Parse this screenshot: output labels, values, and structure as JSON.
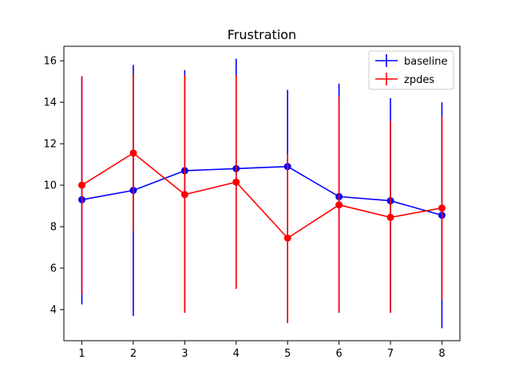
{
  "chart_data": {
    "type": "line",
    "title": "Frustration",
    "xlabel": "",
    "ylabel": "",
    "x": [
      1,
      2,
      3,
      4,
      5,
      6,
      7,
      8
    ],
    "xlim": [
      0.65,
      8.35
    ],
    "ylim": [
      2.5,
      16.7
    ],
    "xticks": [
      1,
      2,
      3,
      4,
      5,
      6,
      7,
      8
    ],
    "yticks": [
      4,
      6,
      8,
      10,
      12,
      14,
      16
    ],
    "grid": false,
    "legend_position": "top-right",
    "series": [
      {
        "name": "baseline",
        "color": "#0000ff",
        "values": [
          9.3,
          9.75,
          10.7,
          10.8,
          10.9,
          9.45,
          9.25,
          8.55
        ],
        "err_low": [
          4.25,
          3.7,
          3.85,
          5.0,
          3.35,
          3.85,
          3.85,
          3.1
        ],
        "err_high": [
          15.25,
          15.8,
          15.55,
          16.1,
          14.6,
          14.9,
          14.2,
          14.0
        ]
      },
      {
        "name": "zpdes",
        "color": "#ff0000",
        "values": [
          10.0,
          11.55,
          9.55,
          10.15,
          7.45,
          9.05,
          8.45,
          8.9
        ],
        "err_low": [
          4.75,
          7.75,
          3.85,
          5.0,
          3.35,
          3.85,
          3.85,
          4.5
        ],
        "err_high": [
          15.25,
          15.35,
          15.3,
          15.3,
          11.5,
          14.3,
          13.1,
          13.3
        ]
      }
    ]
  }
}
